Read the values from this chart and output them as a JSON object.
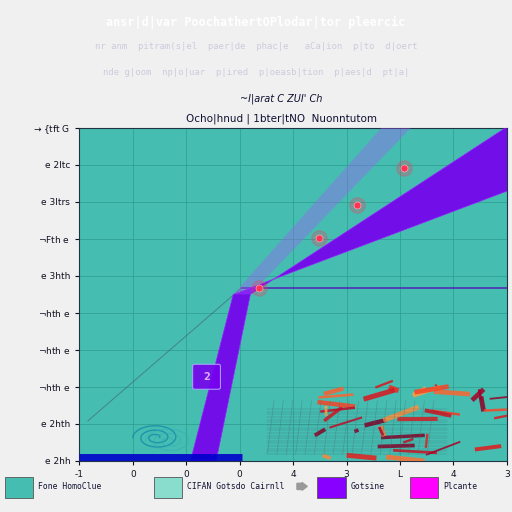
{
  "title_line1": "ansr|d|var PoochathertOPlodar|tor pleercic",
  "title_line2": "nr anm  pitram(s|el  paer|de  phac|e   aCa|ion  p|to  d|oert",
  "title_line3": "nde g|oom  np|o|uar  p|ired  p|oeasb|tion  p|aes|d  pt|a|",
  "subtitle1": "~I|arat C ZUI' Ch",
  "subtitle2": "Ocho|hnud | 1bter|tNO  Nuonntutom",
  "plot_bg": "#45BDB0",
  "grid_color": "#30A090",
  "purple_color": "#7700EE",
  "point_color": "#FF3355",
  "horiz_line_color": "#5500BB",
  "legend_labels": [
    "Fone HomoClue",
    "CIFAN Gotsdo Cairnll",
    "Gotsine",
    "Plcante"
  ],
  "legend_colors": [
    "#45BDB0",
    "#88DDCC",
    "#8800FF",
    "#FF00FF"
  ]
}
